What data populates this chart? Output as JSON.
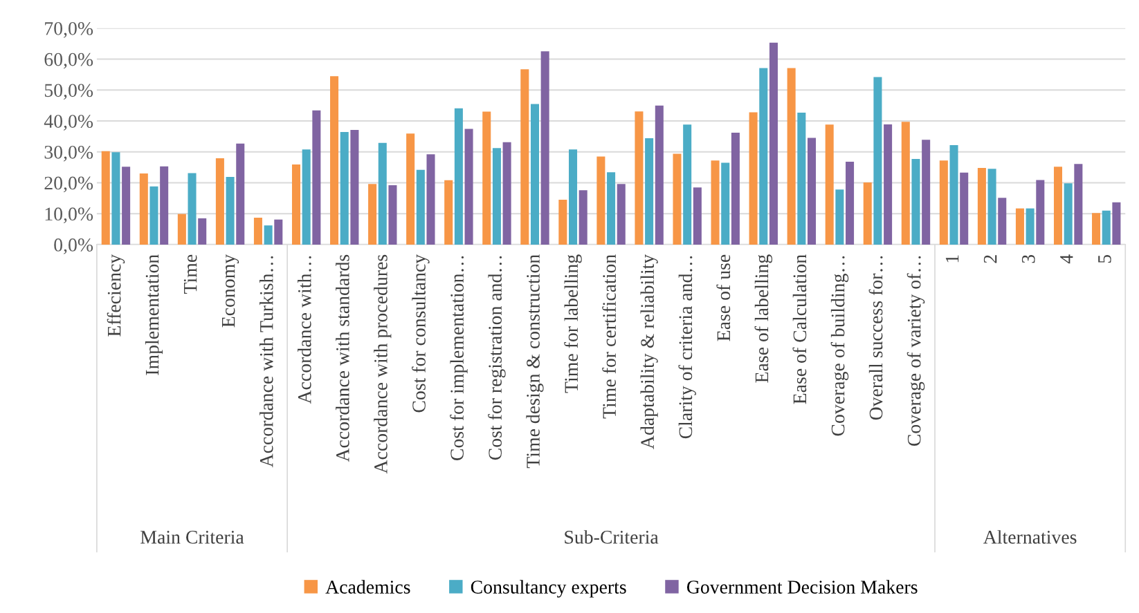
{
  "chart_data": {
    "type": "bar",
    "categories": [
      "Effeciency",
      "Implementation",
      "Time",
      "Economy",
      "Accordance with Turkish…",
      "Accordance with…",
      "Accordance with standards",
      "Accordance with procedures",
      "Cost for consultancy",
      "Cost for implementation…",
      "Cost for registration and…",
      "Time design & construction",
      "Time for labelling",
      "Time for certification",
      "Adaptability & reliability",
      "Clarity of criteria and…",
      "Ease of use",
      "Ease of labelling",
      "Ease of Calculation",
      "Coverage of building…",
      "Overall success for…",
      "Coverage of variety of…",
      "1",
      "2",
      "3",
      "4",
      "5"
    ],
    "series": [
      {
        "name": "Academics",
        "color": "#f79646",
        "values": [
          30.2,
          23.0,
          9.9,
          27.9,
          8.7,
          25.9,
          54.5,
          19.6,
          35.9,
          20.8,
          43.0,
          56.7,
          14.5,
          28.5,
          43.1,
          29.4,
          27.2,
          42.8,
          57.1,
          38.8,
          20.1,
          39.7,
          27.2,
          24.8,
          11.7,
          25.2,
          10.2
        ]
      },
      {
        "name": "Consultancy experts",
        "color": "#4bacc6",
        "values": [
          29.9,
          18.8,
          23.1,
          21.9,
          6.2,
          30.8,
          36.4,
          32.9,
          24.2,
          44.1,
          31.2,
          45.5,
          30.8,
          23.4,
          34.4,
          38.8,
          26.5,
          57.1,
          42.7,
          17.8,
          54.2,
          27.7,
          32.2,
          24.5,
          11.7,
          19.8,
          11.0
        ]
      },
      {
        "name": "Government Decision Makers",
        "color": "#8064a2",
        "values": [
          25.2,
          25.3,
          8.5,
          32.7,
          8.1,
          43.4,
          37.1,
          19.2,
          29.2,
          37.4,
          33.1,
          62.5,
          17.6,
          19.6,
          45.0,
          18.5,
          36.2,
          65.3,
          34.5,
          26.8,
          38.9,
          33.9,
          23.3,
          15.1,
          20.9,
          26.1,
          13.7
        ]
      }
    ],
    "ylim": [
      0,
      70
    ],
    "yticks": [
      {
        "value": 0,
        "label": "0,0%"
      },
      {
        "value": 10,
        "label": "10,0%"
      },
      {
        "value": 20,
        "label": "20,0%"
      },
      {
        "value": 30,
        "label": "30,0%"
      },
      {
        "value": 40,
        "label": "40,0%"
      },
      {
        "value": 50,
        "label": "50,0%"
      },
      {
        "value": 60,
        "label": "60,0%"
      },
      {
        "value": 70,
        "label": "70,0%"
      }
    ],
    "annotations": [
      "Main Criteria",
      "Sub-Criteria",
      "Alternatives"
    ],
    "grid": "y",
    "legend": "bottom"
  }
}
